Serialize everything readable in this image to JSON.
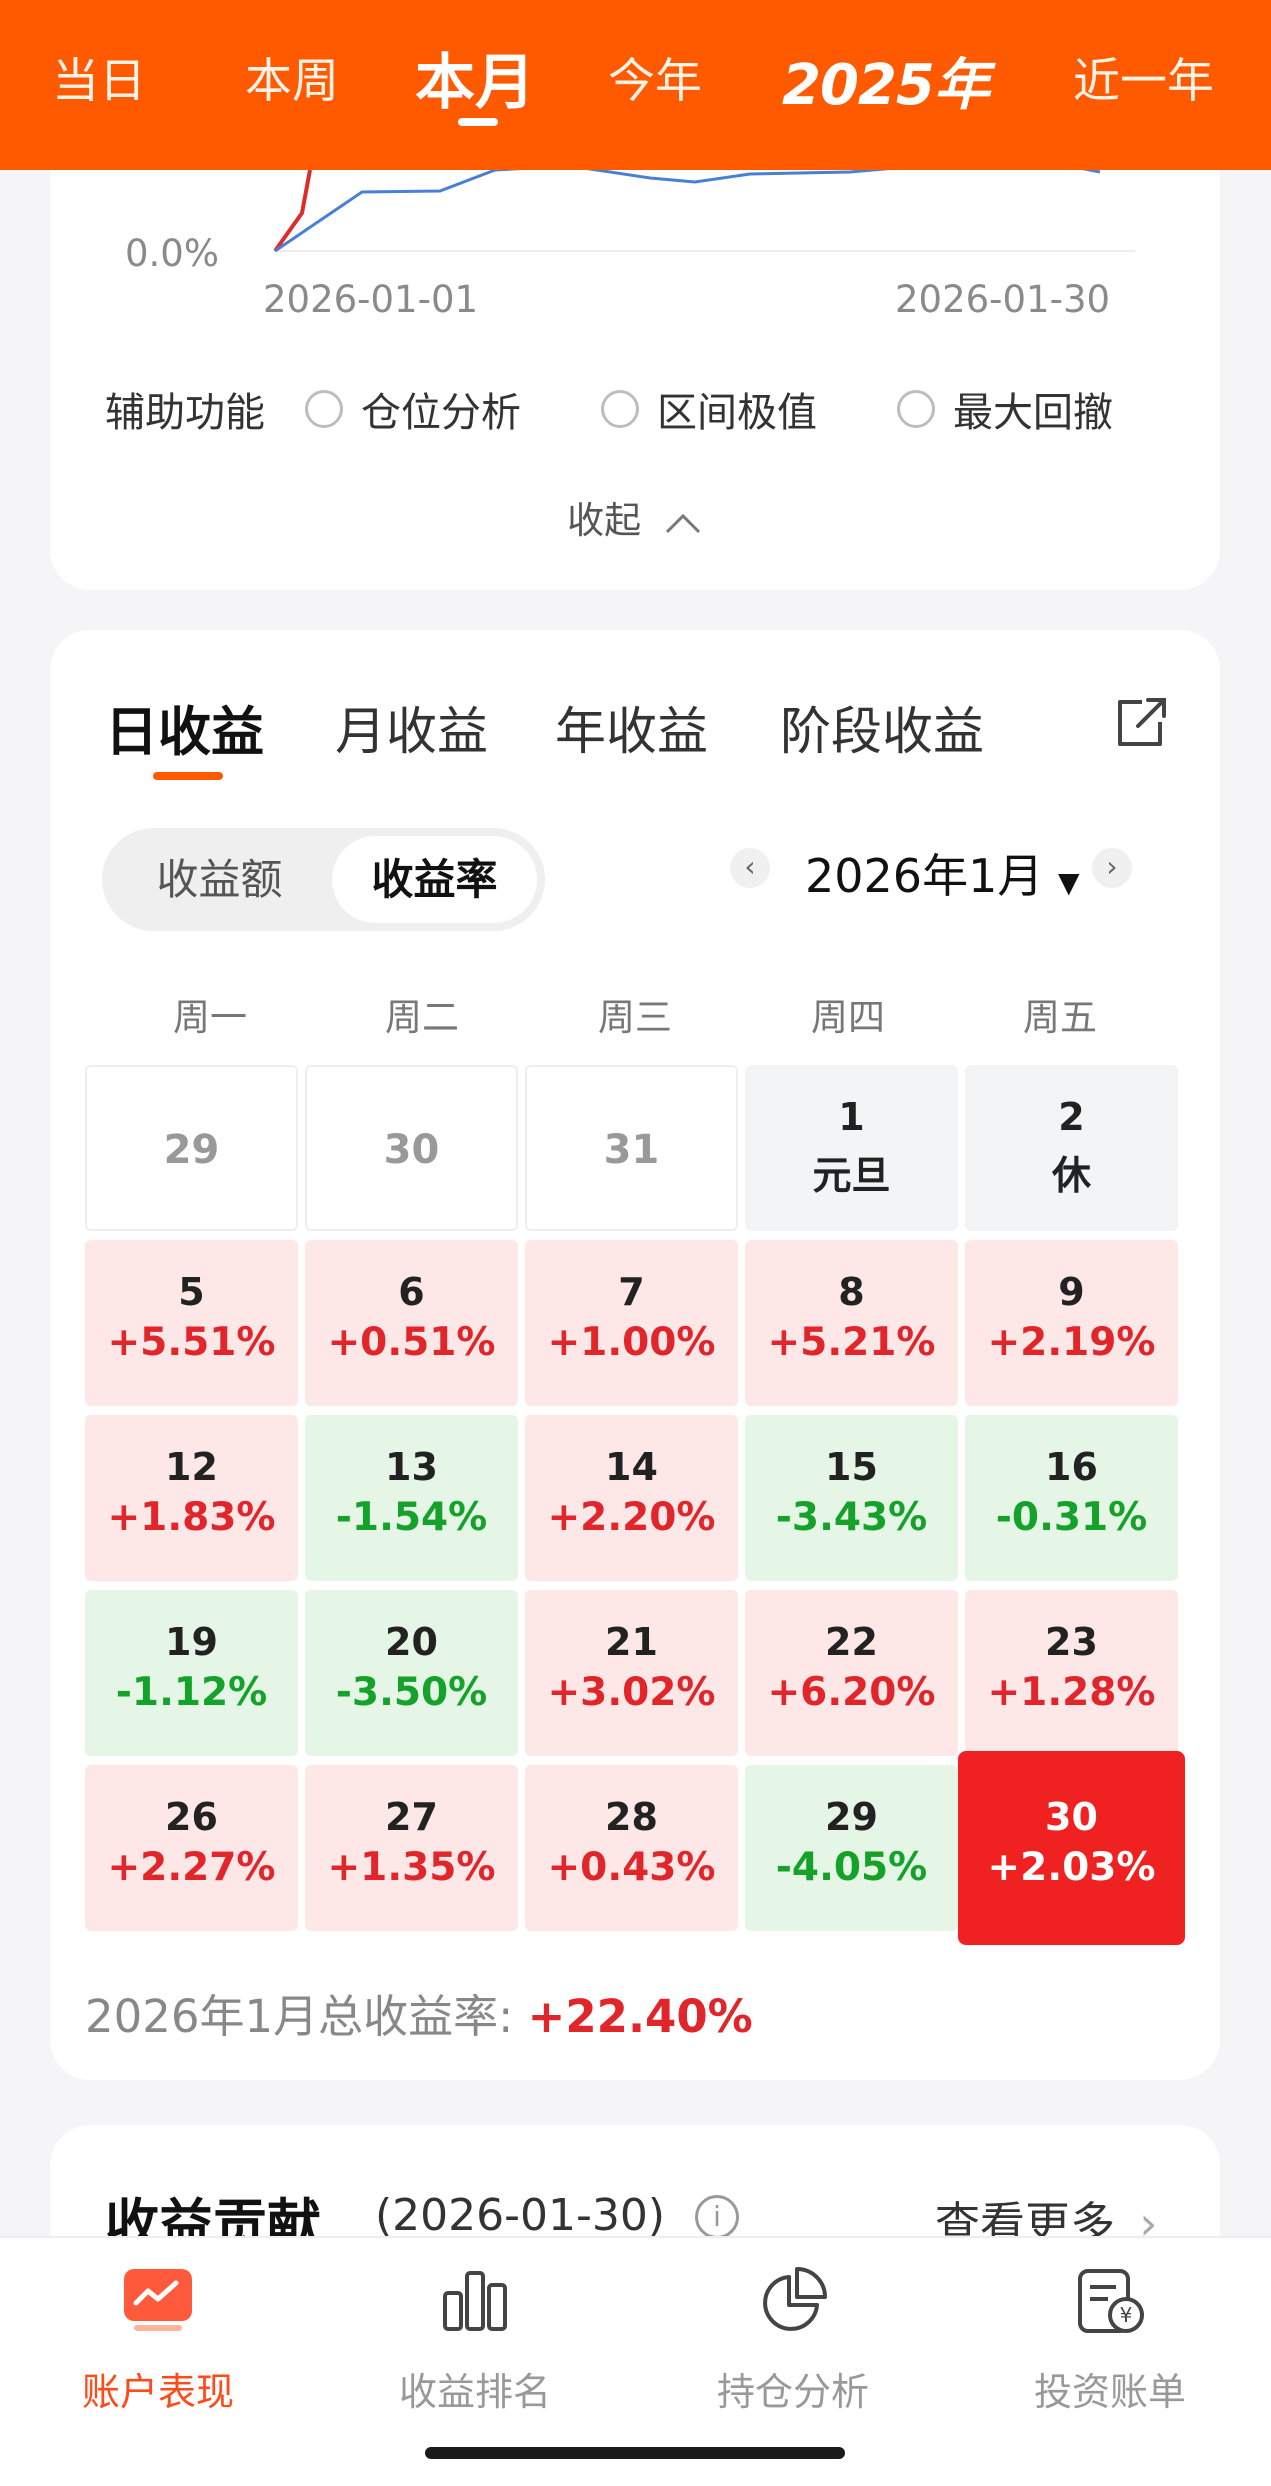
{
  "header": {
    "tabs": [
      "当日",
      "本周",
      "本月",
      "今年",
      "2025年",
      "近一年"
    ],
    "active_tab": "本月",
    "accent_color": "#ff5a00"
  },
  "chart": {
    "y_tick": "0.0%",
    "x_start": "2026-01-01",
    "x_end": "2026-01-30"
  },
  "aux": {
    "title": "辅助功能",
    "options": [
      "仓位分析",
      "区间极值",
      "最大回撤"
    ]
  },
  "collapse_label": "收起",
  "returns": {
    "tabs": [
      "日收益",
      "月收益",
      "年收益",
      "阶段收益"
    ],
    "active_tab": "日收益",
    "toggle": [
      "收益额",
      "收益率"
    ],
    "active_toggle": "收益率",
    "month": "2026年1月",
    "weekdays": [
      "周一",
      "周二",
      "周三",
      "周四",
      "周五"
    ],
    "cells": [
      {
        "day": "29",
        "value": "",
        "type": "blank"
      },
      {
        "day": "30",
        "value": "",
        "type": "blank"
      },
      {
        "day": "31",
        "value": "",
        "type": "blank"
      },
      {
        "day": "1",
        "value": "元旦",
        "type": "holiday"
      },
      {
        "day": "2",
        "value": "休",
        "type": "holiday"
      },
      {
        "day": "5",
        "value": "+5.51%",
        "type": "up"
      },
      {
        "day": "6",
        "value": "+0.51%",
        "type": "up"
      },
      {
        "day": "7",
        "value": "+1.00%",
        "type": "up"
      },
      {
        "day": "8",
        "value": "+5.21%",
        "type": "up"
      },
      {
        "day": "9",
        "value": "+2.19%",
        "type": "up"
      },
      {
        "day": "12",
        "value": "+1.83%",
        "type": "up"
      },
      {
        "day": "13",
        "value": "-1.54%",
        "type": "down"
      },
      {
        "day": "14",
        "value": "+2.20%",
        "type": "up"
      },
      {
        "day": "15",
        "value": "-3.43%",
        "type": "down"
      },
      {
        "day": "16",
        "value": "-0.31%",
        "type": "down"
      },
      {
        "day": "19",
        "value": "-1.12%",
        "type": "down"
      },
      {
        "day": "20",
        "value": "-3.50%",
        "type": "down"
      },
      {
        "day": "21",
        "value": "+3.02%",
        "type": "up"
      },
      {
        "day": "22",
        "value": "+6.20%",
        "type": "up"
      },
      {
        "day": "23",
        "value": "+1.28%",
        "type": "up"
      },
      {
        "day": "26",
        "value": "+2.27%",
        "type": "up"
      },
      {
        "day": "27",
        "value": "+1.35%",
        "type": "up"
      },
      {
        "day": "28",
        "value": "+0.43%",
        "type": "up"
      },
      {
        "day": "29",
        "value": "-4.05%",
        "type": "down"
      },
      {
        "day": "30",
        "value": "+2.03%",
        "type": "sel"
      }
    ],
    "total_label": "2026年1月总收益率: ",
    "total_value": "+22.40%",
    "up_color": "#e0262b",
    "down_color": "#15a22a"
  },
  "contribution": {
    "title": "收益贡献",
    "date": "(2026-01-30)",
    "more": "查看更多"
  },
  "bottom_nav": {
    "items": [
      "账户表现",
      "收益排名",
      "持仓分析",
      "投资账单"
    ],
    "active": "账户表现"
  }
}
